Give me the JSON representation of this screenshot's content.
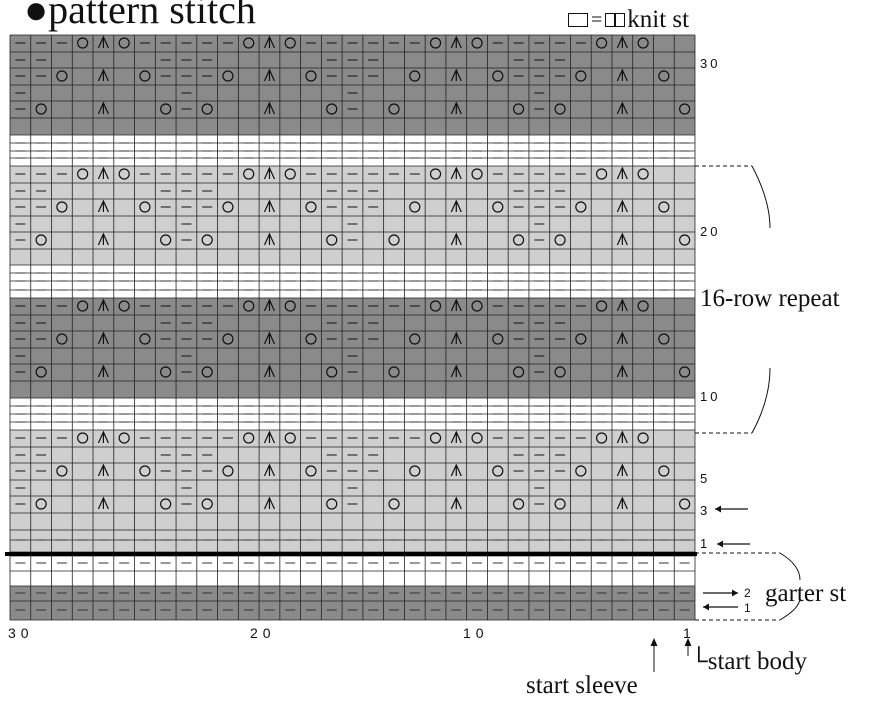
{
  "title": "●pattern stitch",
  "legend": {
    "equals": "=",
    "label": "knit st"
  },
  "repeat_label": "16-row repeat",
  "garter_label": "garter st",
  "start_sleeve_label": "start sleeve",
  "start_body_label": "└start body",
  "row_numbers": {
    "r1": "1",
    "r3": "3",
    "r5": "5",
    "r10": "10",
    "r20": "20",
    "r30": "30",
    "g1": "1",
    "g2": "2"
  },
  "col_numbers": {
    "c1": "1",
    "c10": "10",
    "c20": "20",
    "c30": "30"
  },
  "colors": {
    "dark": "#8a8a8a",
    "light": "#cfcfcf",
    "white": "#ffffff",
    "line": "#222222"
  },
  "chart_data": {
    "type": "knitting-chart",
    "columns": 33,
    "pattern_rows": 32,
    "garter_rows": 4,
    "symbols": {
      "purl": "—",
      "yarn_over": "○",
      "decrease": "⋏"
    },
    "row_types": [
      "p",
      "l",
      "y1",
      "l",
      "y2",
      "l",
      "y3",
      "l",
      "y4",
      "w",
      "p",
      "w",
      "p",
      "l",
      "y1",
      "d",
      "y2",
      "d",
      "y3",
      "d",
      "y4",
      "w",
      "p",
      "w",
      "p",
      "l",
      "y1",
      "l",
      "y2",
      "l",
      "y3",
      "l"
    ]
  }
}
